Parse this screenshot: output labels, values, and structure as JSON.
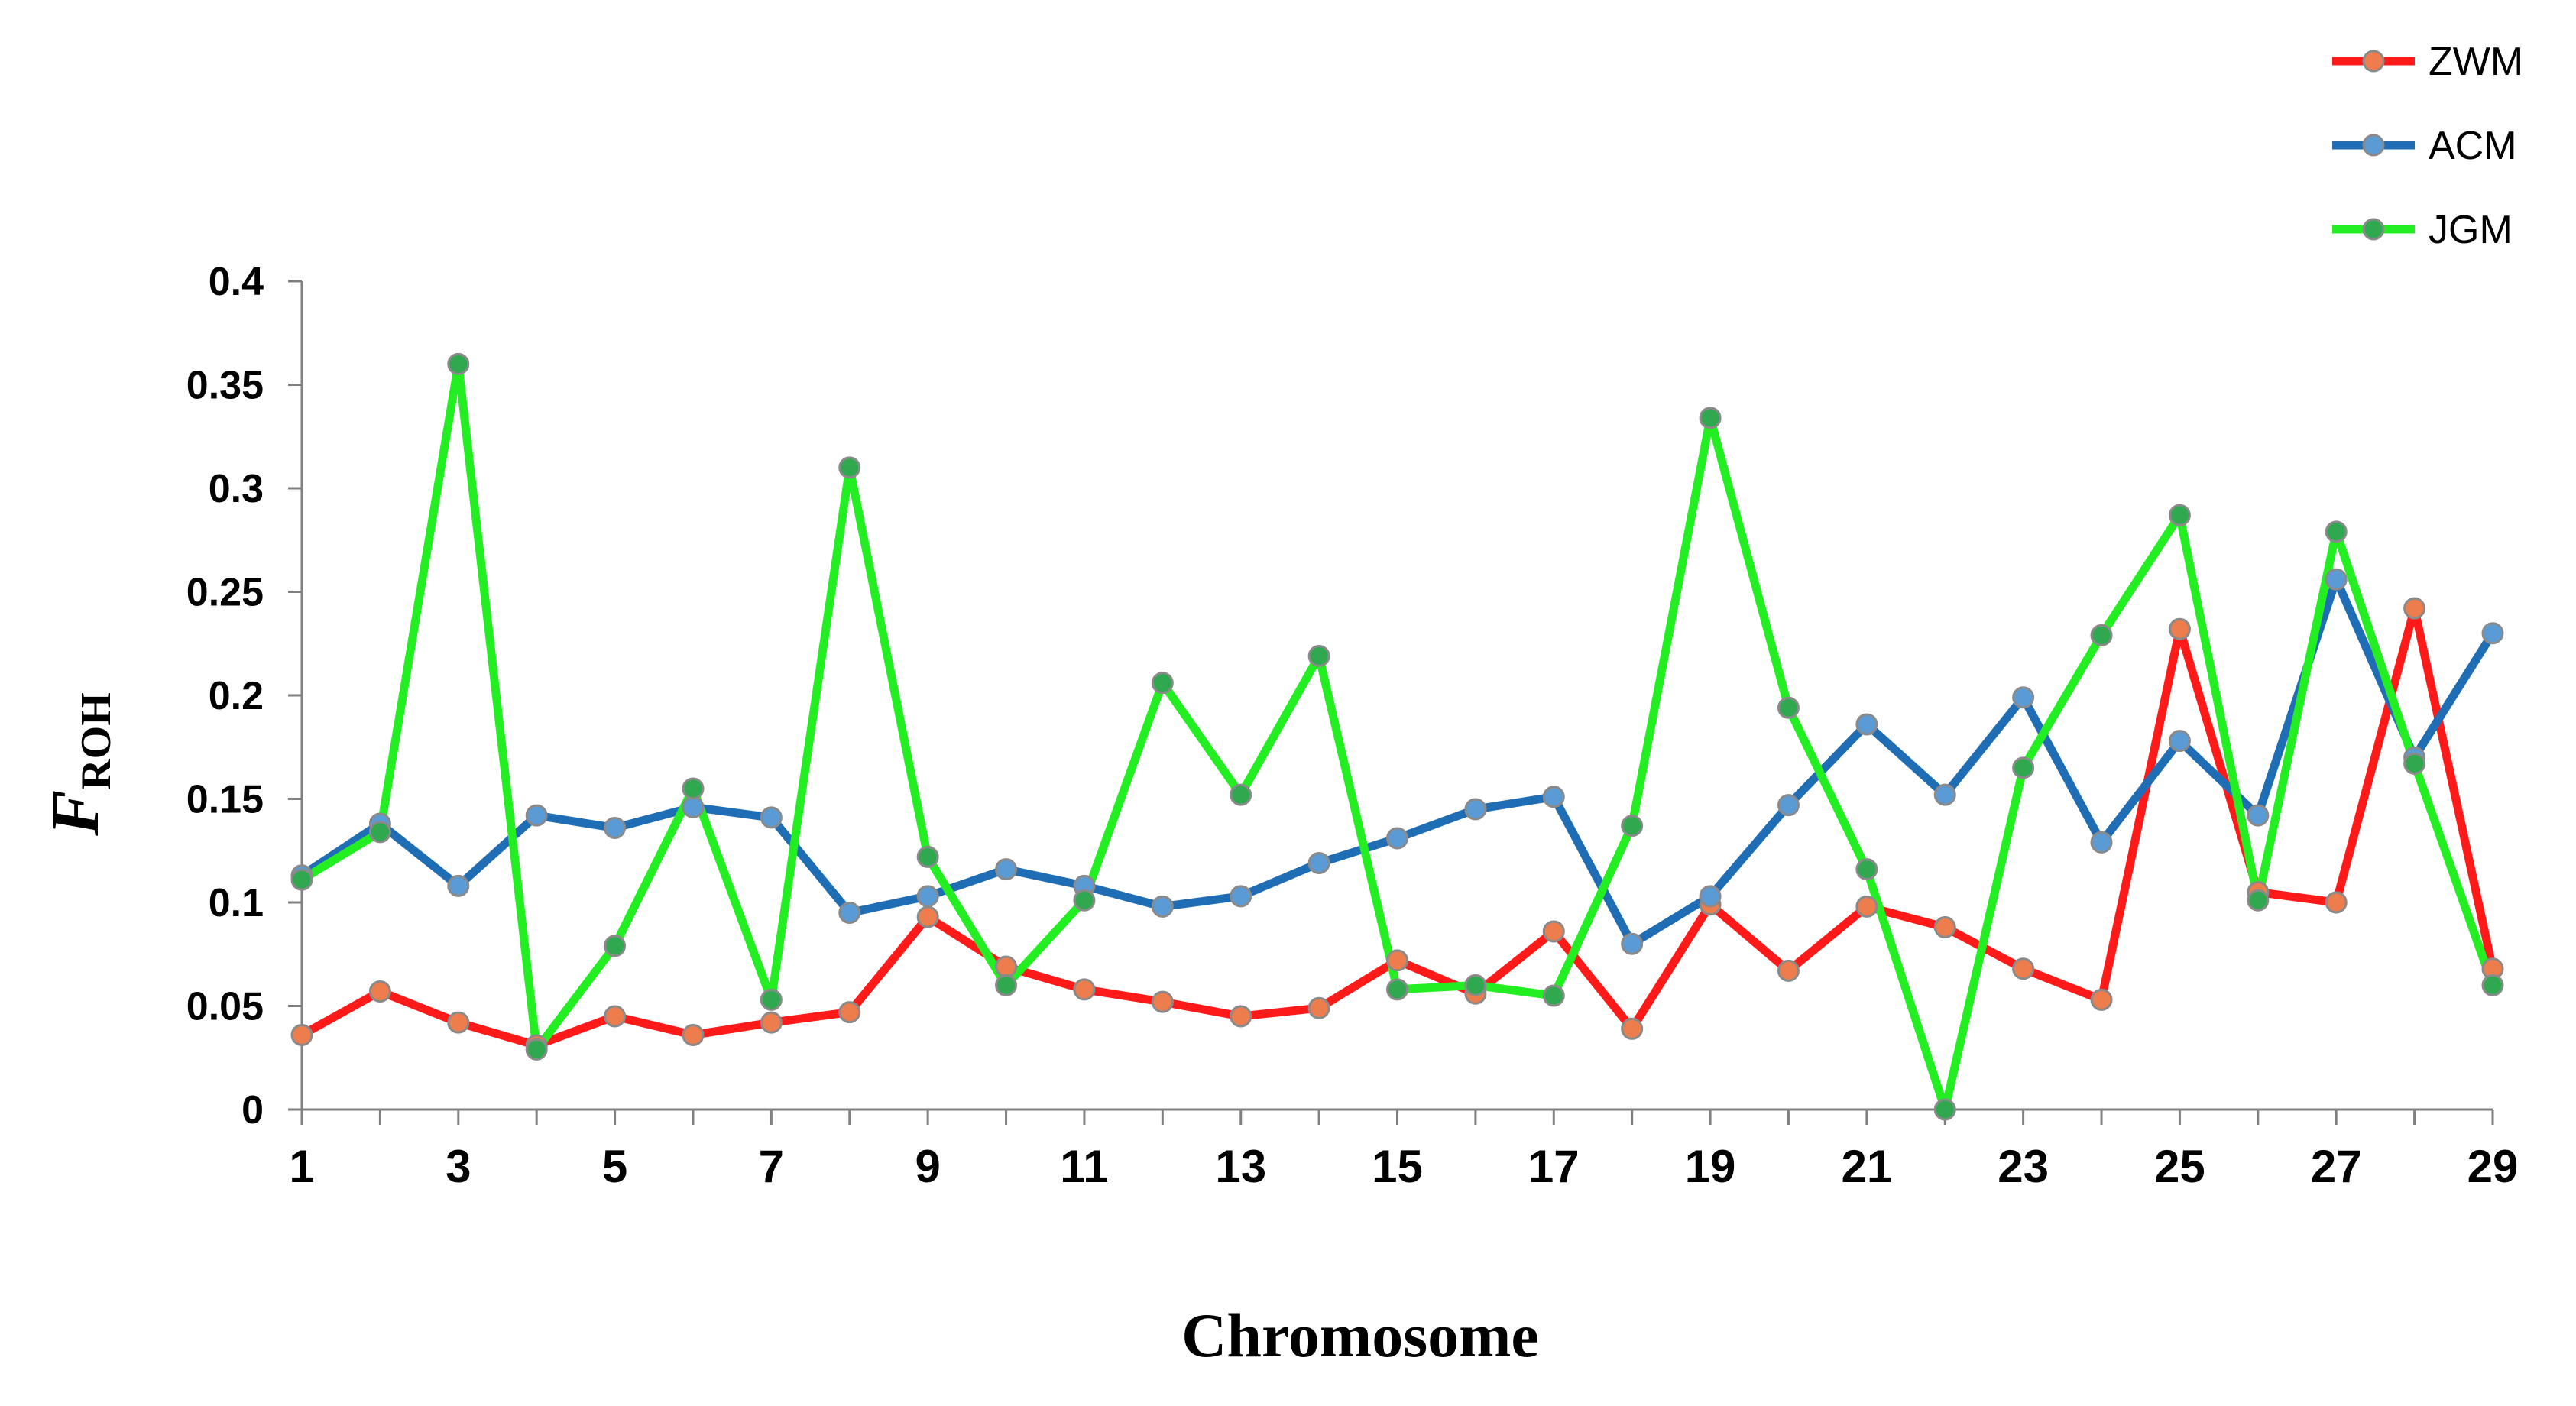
{
  "chart_data": {
    "type": "line",
    "title": "",
    "xlabel": "Chromosome",
    "ylabel": {
      "main": "F",
      "sub": "ROH"
    },
    "ylim": [
      0,
      0.4
    ],
    "y_ticks": [
      "0",
      "0.05",
      "0.1",
      "0.15",
      "0.2",
      "0.25",
      "0.3",
      "0.35",
      "0.4"
    ],
    "y_tick_values": [
      0,
      0.05,
      0.1,
      0.15,
      0.2,
      0.25,
      0.3,
      0.35,
      0.4
    ],
    "x": [
      1,
      2,
      3,
      4,
      5,
      6,
      7,
      8,
      9,
      10,
      11,
      12,
      13,
      14,
      15,
      16,
      17,
      18,
      19,
      20,
      21,
      22,
      23,
      24,
      25,
      26,
      27,
      28,
      29
    ],
    "x_tick_labels": [
      "1",
      "3",
      "5",
      "7",
      "9",
      "11",
      "13",
      "15",
      "17",
      "19",
      "21",
      "23",
      "25",
      "27",
      "29"
    ],
    "x_tick_label_values": [
      1,
      3,
      5,
      7,
      9,
      11,
      13,
      15,
      17,
      19,
      21,
      23,
      25,
      27,
      29
    ],
    "grid": false,
    "legend_position": "top-right",
    "series": [
      {
        "name": "ZWM",
        "line_color": "#ff1a1a",
        "marker_color": "#ee7d4d",
        "values": [
          0.036,
          0.057,
          0.042,
          0.031,
          0.045,
          0.036,
          0.042,
          0.047,
          0.093,
          0.069,
          0.058,
          0.052,
          0.045,
          0.049,
          0.072,
          0.056,
          0.086,
          0.039,
          0.099,
          0.067,
          0.098,
          0.088,
          0.068,
          0.053,
          0.232,
          0.105,
          0.1,
          0.242,
          0.068
        ]
      },
      {
        "name": "ACM",
        "line_color": "#1f6db5",
        "marker_color": "#5b9bd5",
        "values": [
          0.113,
          0.138,
          0.108,
          0.142,
          0.136,
          0.146,
          0.141,
          0.095,
          0.103,
          0.116,
          0.108,
          0.098,
          0.103,
          0.119,
          0.131,
          0.145,
          0.151,
          0.08,
          0.103,
          0.147,
          0.186,
          0.152,
          0.199,
          0.129,
          0.178,
          0.142,
          0.256,
          0.17,
          0.23
        ]
      },
      {
        "name": "JGM",
        "line_color": "#22ee22",
        "marker_color": "#2fa84f",
        "values": [
          0.111,
          0.134,
          0.36,
          0.029,
          0.079,
          0.155,
          0.053,
          0.31,
          0.122,
          0.06,
          0.101,
          0.206,
          0.152,
          0.219,
          0.058,
          0.06,
          0.055,
          0.137,
          0.334,
          0.194,
          0.116,
          0.0,
          0.165,
          0.229,
          0.287,
          0.101,
          0.279,
          0.167,
          0.06
        ]
      }
    ]
  }
}
